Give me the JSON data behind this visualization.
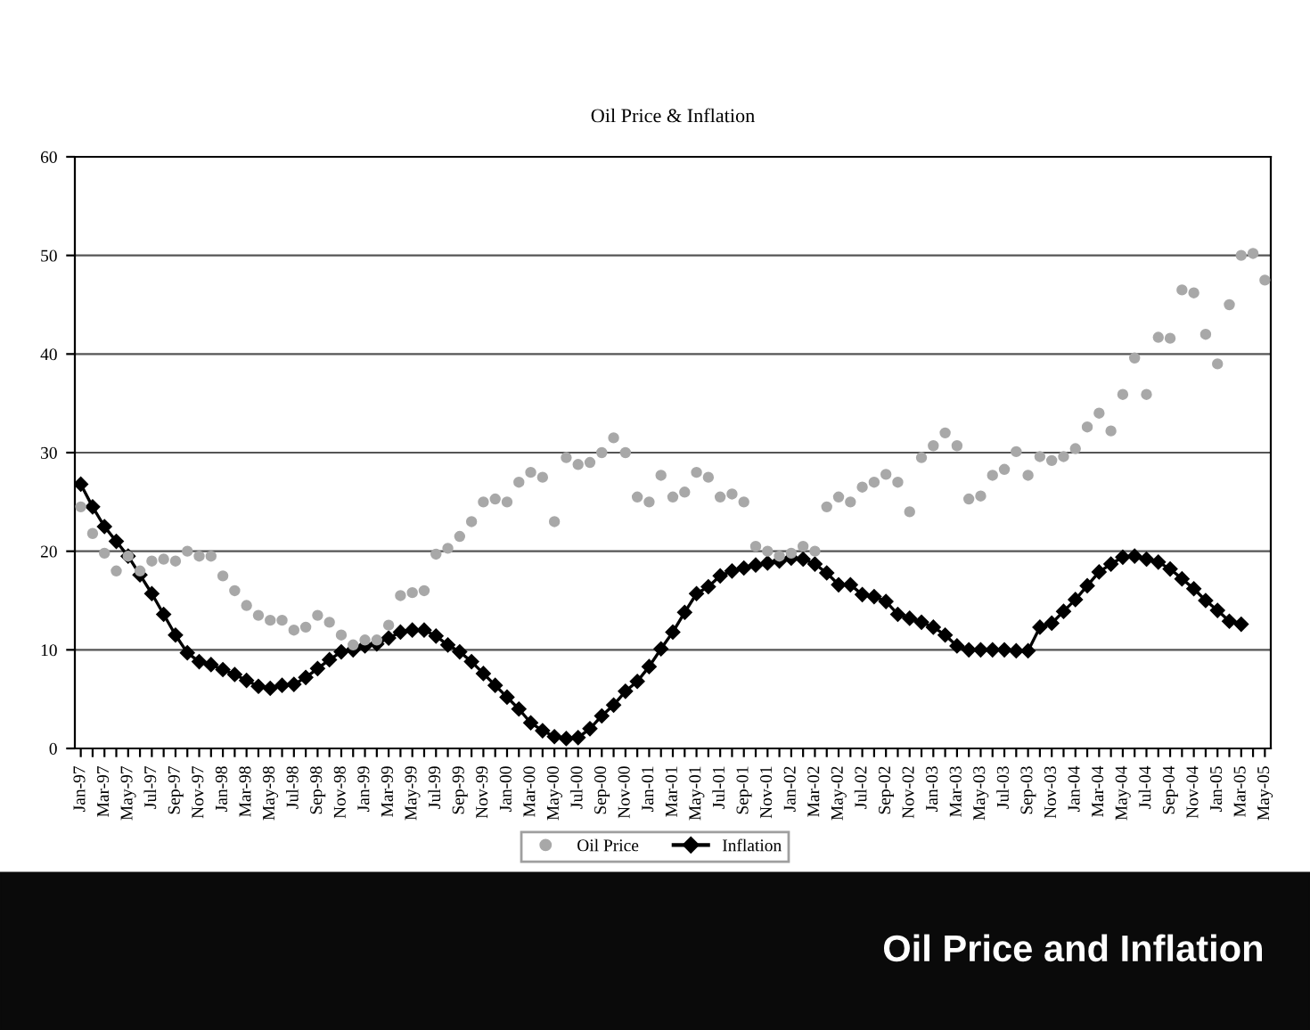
{
  "chart_data": {
    "type": "line",
    "title": "Oil Price & Inflation",
    "categories": [
      "Jan-97",
      null,
      "Mar-97",
      null,
      "May-97",
      null,
      "Jul-97",
      null,
      "Sep-97",
      null,
      "Nov-97",
      null,
      "Jan-98",
      null,
      "Mar-98",
      null,
      "May-98",
      null,
      "Jul-98",
      null,
      "Sep-98",
      null,
      "Nov-98",
      null,
      "Jan-99",
      null,
      "Mar-99",
      null,
      "May-99",
      null,
      "Jul-99",
      null,
      "Sep-99",
      null,
      "Nov-99",
      null,
      "Jan-00",
      null,
      "Mar-00",
      null,
      "May-00",
      null,
      "Jul-00",
      null,
      "Sep-00",
      null,
      "Nov-00",
      null,
      "Jan-01",
      null,
      "Mar-01",
      null,
      "May-01",
      null,
      "Jul-01",
      null,
      "Sep-01",
      null,
      "Nov-01",
      null,
      "Jan-02",
      null,
      "Mar-02",
      null,
      "May-02",
      null,
      "Jul-02",
      null,
      "Sep-02",
      null,
      "Nov-02",
      null,
      "Jan-03",
      null,
      "Mar-03",
      null,
      "May-03",
      null,
      "Jul-03",
      null,
      "Sep-03",
      null,
      "Nov-03",
      null,
      "Jan-04",
      null,
      "Mar-04",
      null,
      "May-04",
      null,
      "Jul-04",
      null,
      "Sep-04",
      null,
      "Nov-04",
      null,
      "Jan-05",
      null,
      "Mar-05",
      null,
      "May-05"
    ],
    "series": [
      {
        "name": "Oil Price",
        "type": "scatter",
        "marker": "circle",
        "color": "#a8a8a8",
        "values": [
          24.5,
          21.8,
          19.8,
          18.0,
          19.5,
          18.0,
          19.0,
          19.2,
          19.0,
          20.0,
          19.5,
          19.5,
          17.5,
          16.0,
          14.5,
          13.5,
          13.0,
          13.0,
          12.0,
          12.3,
          13.5,
          12.8,
          11.5,
          10.5,
          11.0,
          11.0,
          12.5,
          15.5,
          15.8,
          16.0,
          19.7,
          20.3,
          21.5,
          23.0,
          25.0,
          25.3,
          25.0,
          27.0,
          28.0,
          27.5,
          23.0,
          29.5,
          28.8,
          29.0,
          30.0,
          31.5,
          30.0,
          25.5,
          25.0,
          27.7,
          25.5,
          26.0,
          28.0,
          27.5,
          25.5,
          25.8,
          25.0,
          20.5,
          20.0,
          19.5,
          19.8,
          20.5,
          20.0,
          24.5,
          25.5,
          25.0,
          26.5,
          27.0,
          27.8,
          27.0,
          24.0,
          29.5,
          30.7,
          32.0,
          30.7,
          25.3,
          25.6,
          27.7,
          28.3,
          30.1,
          27.7,
          29.6,
          29.2,
          29.6,
          30.4,
          32.6,
          34.0,
          32.2,
          35.9,
          39.6,
          35.9,
          41.7,
          41.6,
          46.5,
          46.2,
          42.0,
          39.0,
          45.0,
          50.0,
          50.2,
          47.5
        ]
      },
      {
        "name": "Inflation",
        "marker": "diamond",
        "color": "#000000",
        "values": [
          26.8,
          24.5,
          22.5,
          21.0,
          19.5,
          17.6,
          15.7,
          13.6,
          11.5,
          9.7,
          8.8,
          8.5,
          8.0,
          7.5,
          6.9,
          6.3,
          6.1,
          6.4,
          6.5,
          7.2,
          8.1,
          9.0,
          9.8,
          10.0,
          10.4,
          10.6,
          11.2,
          11.8,
          12.0,
          12.0,
          11.4,
          10.5,
          9.8,
          8.8,
          7.6,
          6.4,
          5.2,
          4.0,
          2.6,
          1.8,
          1.2,
          1.0,
          1.1,
          2.0,
          3.3,
          4.4,
          5.8,
          6.8,
          8.3,
          10.1,
          11.8,
          13.8,
          15.7,
          16.4,
          17.5,
          18.0,
          18.3,
          18.6,
          18.8,
          19.0,
          19.3,
          19.2,
          18.7,
          17.8,
          16.6,
          16.6,
          15.6,
          15.4,
          14.9,
          13.6,
          13.2,
          12.8,
          12.3,
          11.5,
          10.4,
          10.0,
          10.0,
          10.0,
          10.0,
          9.9,
          9.9,
          12.3,
          12.7,
          13.9,
          15.1,
          16.5,
          17.9,
          18.7,
          19.4,
          19.5,
          19.2,
          18.9,
          18.2,
          17.2,
          16.2,
          15.0,
          14.0,
          12.9,
          12.6,
          null,
          null
        ]
      }
    ],
    "ylim": [
      0,
      60
    ],
    "yticks": [
      0,
      10,
      20,
      30,
      40,
      50,
      60
    ],
    "grid": "y",
    "legend": "bottom",
    "annotations": [
      "Oil Price and Inflation"
    ]
  }
}
